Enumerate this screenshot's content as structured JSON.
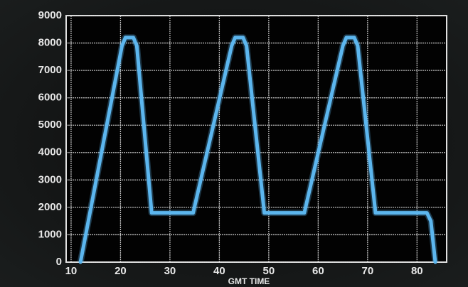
{
  "chart_data": {
    "type": "line",
    "xlabel": "GMT TIME",
    "x": [
      11.9,
      20.3,
      21,
      22.6,
      23.3,
      26.3,
      34.7,
      42.5,
      43.2,
      44.8,
      45.5,
      49.1,
      57.2,
      65,
      65.7,
      67.3,
      68,
      71.6,
      82,
      82.8,
      83.7
    ],
    "series": [
      {
        "color": "#5cb6ee",
        "values": [
          0,
          7900,
          8200,
          8200,
          7900,
          1800,
          1800,
          7900,
          8200,
          8200,
          7900,
          1800,
          1800,
          7900,
          8200,
          8200,
          7900,
          1800,
          1800,
          1500,
          0
        ]
      }
    ],
    "xlim": [
      9,
      86
    ],
    "ylim": [
      0,
      9000
    ],
    "xticks": [
      10,
      20,
      30,
      40,
      50,
      60,
      70,
      80
    ],
    "yticks": [
      0,
      1000,
      2000,
      3000,
      4000,
      5000,
      6000,
      7000,
      8000,
      9000
    ],
    "grid": true
  }
}
